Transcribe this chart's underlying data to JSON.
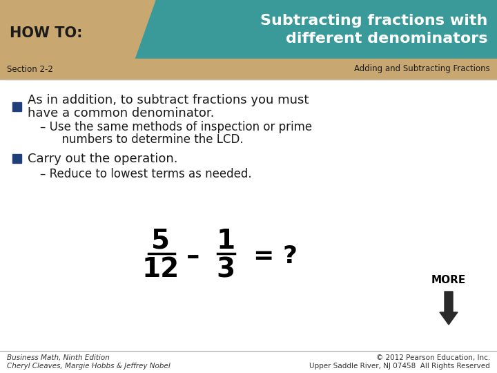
{
  "title_main": "Subtracting fractions with\ndifferent denominators",
  "howto_label": "HOW TO:",
  "section_label": "Section 2-2",
  "section_right": "Adding and Subtracting Fractions",
  "teal_color": "#3A9A9A",
  "tan_color": "#C8A870",
  "bullet_color": "#1F3F7A",
  "bullet1_line1": "As in addition, to subtract fractions you must",
  "bullet1_line2": "have a common denominator.",
  "sub1_line1": "– Use the same methods of inspection or prime",
  "sub1_line2": "      numbers to determine the LCD.",
  "bullet2": "Carry out the operation.",
  "sub2": "– Reduce to lowest terms as needed.",
  "more_label": "MORE",
  "footer_left1": "Business Math, Ninth Edition",
  "footer_left2": "Cheryl Cleaves, Margie Hobbs & Jeffrey Nobel",
  "footer_right1": "© 2012 Pearson Education, Inc.",
  "footer_right2": "Upper Saddle River, NJ 07458  All Rights Reserved",
  "bg_color": "#FFFFFF",
  "dark_text": "#1A1A1A",
  "black": "#000000"
}
